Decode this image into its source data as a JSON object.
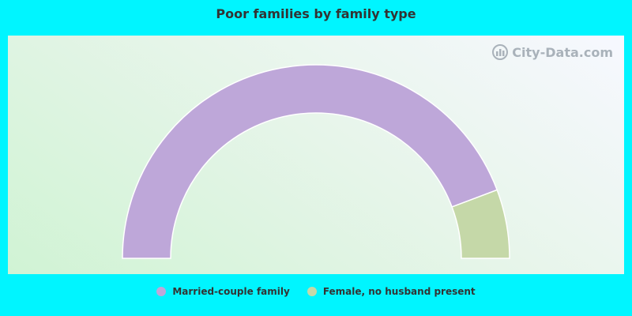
{
  "title": "Poor families by family type",
  "watermark": {
    "text": "City-Data.com",
    "icon": "city-data-logo-icon"
  },
  "chart_data": {
    "type": "pie",
    "subtype": "semi-donut",
    "title": "Poor families by family type",
    "series": [
      {
        "name": "Married-couple family",
        "value": 88.5,
        "color": "#bea7d9"
      },
      {
        "name": "Female, no husband present",
        "value": 11.5,
        "color": "#c5d8a8"
      }
    ],
    "legend": "bottom-center"
  }
}
